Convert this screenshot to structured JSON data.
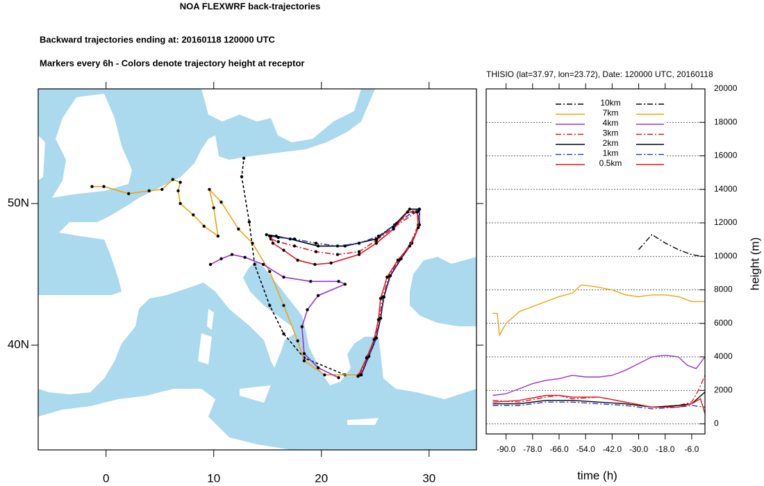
{
  "header": {
    "title": "NOA FLEXWRF back-trajectories",
    "subtitle": "Backward trajectories ending at: 20160118  120000 UTC",
    "note": "Markers every 6h - Colors denote trajectory height at receptor"
  },
  "chart_data": [
    {
      "type": "map",
      "xlim": [
        -6.3,
        34.4
      ],
      "ylim": [
        32.6,
        58.1
      ],
      "xticks": [
        0,
        10,
        20,
        30
      ],
      "yticks": [
        {
          "value": 40,
          "label": "40N"
        },
        {
          "value": 50,
          "label": "50N"
        }
      ],
      "markers": true,
      "series": [
        {
          "color": "#000000",
          "dash": "4,3",
          "x": [
            22.2,
            18.4,
            16.5,
            15.2,
            13.8,
            13.3,
            12.6,
            12.8
          ],
          "values": [
            37.9,
            39.1,
            40.8,
            42.8,
            45.7,
            48.7,
            51.9,
            53.2
          ]
        },
        {
          "color": "#f0a30a",
          "dash": "",
          "x": [
            23.5,
            20.3,
            18.4,
            17.8,
            16.5,
            15.2,
            13.6,
            12.3,
            10.7,
            9.6,
            10.0,
            10.4,
            9.1,
            8.1,
            6.9,
            6.7,
            6.9,
            6.2,
            5.2,
            4.0,
            2.1,
            -0.2,
            -1.3
          ],
          "values": [
            37.9,
            37.9,
            38.9,
            40.3,
            42.8,
            45.2,
            47.2,
            48.2,
            50.1,
            51.0,
            49.7,
            47.7,
            48.4,
            49.2,
            50.0,
            50.9,
            51.5,
            51.7,
            51.0,
            50.9,
            50.7,
            51.2,
            51.2
          ]
        },
        {
          "color": "#9933cc",
          "dash": "",
          "x": [
            21.6,
            19.7,
            18.4,
            18.2,
            18.7,
            19.7,
            22.2,
            21.6,
            19.0,
            16.5,
            14.6,
            12.9,
            11.7,
            10.7,
            9.7
          ],
          "values": [
            37.7,
            38.4,
            39.4,
            41.3,
            42.5,
            43.5,
            44.3,
            44.5,
            44.5,
            44.8,
            45.7,
            46.2,
            46.4,
            46.1,
            45.7
          ]
        },
        {
          "color": "#e8141e",
          "dash": "8,3,2,3",
          "x": [
            23.6,
            24.3,
            25.0,
            25.4,
            25.7,
            26.3,
            27.3,
            28.3,
            29.0,
            29.0,
            26.7,
            25.1,
            23.5,
            21.5,
            19.5,
            17.5,
            16.0,
            15.3
          ],
          "values": [
            37.9,
            39.2,
            40.5,
            41.9,
            43.4,
            44.9,
            46.1,
            47.2,
            48.5,
            49.5,
            48.3,
            47.4,
            46.6,
            46.4,
            46.6,
            47.0,
            47.3,
            47.5
          ]
        },
        {
          "color": "#000000",
          "dash": "",
          "x": [
            23.7,
            24.4,
            25.1,
            25.5,
            25.8,
            26.4,
            27.4,
            28.4,
            29.1,
            29.1,
            28.2,
            26.8,
            25.1,
            22.2,
            19.7,
            17.1,
            15.8,
            14.9
          ],
          "values": [
            37.9,
            39.2,
            40.5,
            41.9,
            43.4,
            44.9,
            46.1,
            47.2,
            48.5,
            49.6,
            49.6,
            48.5,
            47.5,
            47.0,
            47.0,
            47.5,
            47.7,
            47.8
          ]
        },
        {
          "color": "#1f3fd6",
          "dash": "8,3,2,3",
          "x": [
            23.7,
            24.4,
            25.1,
            25.5,
            25.8,
            26.4,
            27.4,
            28.4,
            29.1,
            29.1,
            28.5,
            27.0,
            25.3,
            23.5,
            21.5,
            19.5,
            17.5,
            16.0,
            15.2
          ],
          "values": [
            37.9,
            39.2,
            40.5,
            41.9,
            43.4,
            44.9,
            46.1,
            47.2,
            48.5,
            49.6,
            49.4,
            48.6,
            47.7,
            47.2,
            47.0,
            47.2,
            47.5,
            47.6,
            47.7
          ]
        },
        {
          "color": "#e8141e",
          "dash": "",
          "x": [
            23.4,
            24.2,
            24.9,
            25.3,
            25.5,
            26.1,
            27.1,
            28.2,
            29.0,
            28.9,
            28.0,
            26.7,
            25.1,
            23.5,
            20.9,
            19.4,
            17.8,
            16.5,
            15.5,
            15.3
          ],
          "values": [
            37.8,
            39.1,
            40.4,
            41.8,
            43.3,
            44.8,
            46.0,
            47.0,
            48.3,
            49.4,
            49.4,
            48.2,
            47.2,
            46.4,
            45.8,
            45.7,
            46.0,
            46.7,
            47.2,
            47.7
          ]
        }
      ]
    },
    {
      "type": "line",
      "title": "THISIO (lat=37.97,  lon=23.72), Date: 120000 UTC, 20160118",
      "xlabel": "time (h)",
      "ylabel": "height (m)",
      "xlim": [
        -99,
        0
      ],
      "ylim": [
        -600,
        20000
      ],
      "xticks": [
        {
          "value": -90,
          "label": "-90.0"
        },
        {
          "value": -78,
          "label": "-78.0"
        },
        {
          "value": -66,
          "label": "-66.0"
        },
        {
          "value": -54,
          "label": "-54.0"
        },
        {
          "value": -42,
          "label": "-42.0"
        },
        {
          "value": -30,
          "label": "-30.0"
        },
        {
          "value": -18,
          "label": "-18.0"
        },
        {
          "value": -6,
          "label": "-6.0"
        }
      ],
      "yticks": [
        0,
        2000,
        4000,
        6000,
        8000,
        10000,
        12000,
        14000,
        16000,
        18000,
        20000
      ],
      "grid": true,
      "legend": "top",
      "series": [
        {
          "name": "10km",
          "color": "#000000",
          "dash": "8,3,2,3",
          "x": [
            -30,
            -24,
            -18,
            -12,
            -6,
            -1
          ],
          "values": [
            10400,
            11300,
            10800,
            10400,
            10100,
            10000
          ]
        },
        {
          "name": "7km",
          "color": "#f0a30a",
          "dash": "",
          "x": [
            -96,
            -94,
            -93,
            -90,
            -84,
            -78,
            -72,
            -66,
            -60,
            -56,
            -50,
            -42,
            -36,
            -30,
            -24,
            -18,
            -12,
            -6,
            0
          ],
          "values": [
            6600,
            6600,
            5300,
            6000,
            6700,
            7000,
            7300,
            7600,
            7800,
            8300,
            8200,
            8000,
            7700,
            7600,
            7700,
            7700,
            7600,
            7300,
            7300
          ]
        },
        {
          "name": "4km",
          "color": "#9933cc",
          "dash": "",
          "x": [
            -96,
            -90,
            -84,
            -78,
            -72,
            -66,
            -60,
            -54,
            -48,
            -42,
            -36,
            -30,
            -24,
            -18,
            -12,
            -8,
            -4,
            0
          ],
          "values": [
            1700,
            1800,
            2100,
            2400,
            2600,
            2700,
            2900,
            2800,
            2800,
            2900,
            3200,
            3600,
            4000,
            4100,
            4000,
            3500,
            3300,
            4000
          ]
        },
        {
          "name": "3km",
          "color": "#e8141e",
          "dash": "8,3,2,3",
          "x": [
            -96,
            -84,
            -72,
            -66,
            -60,
            -48,
            -36,
            -24,
            -18,
            -12,
            -6,
            -3,
            0
          ],
          "values": [
            1400,
            1300,
            1600,
            1700,
            1500,
            1600,
            1300,
            1000,
            1000,
            1100,
            1300,
            2000,
            2900
          ]
        },
        {
          "name": "2km",
          "color": "#000000",
          "dash": "",
          "x": [
            -96,
            -84,
            -72,
            -60,
            -48,
            -36,
            -24,
            -12,
            -6,
            0
          ],
          "values": [
            1200,
            1200,
            1400,
            1400,
            1300,
            1200,
            1000,
            1100,
            1200,
            1900
          ]
        },
        {
          "name": "1km",
          "color": "#1f3fd6",
          "dash": "8,3,2,3",
          "x": [
            -96,
            -84,
            -72,
            -60,
            -48,
            -36,
            -24,
            -12,
            -6,
            0
          ],
          "values": [
            1100,
            1100,
            1300,
            1300,
            1200,
            1100,
            900,
            1000,
            1100,
            1000
          ]
        },
        {
          "name": "0.5km",
          "color": "#e8141e",
          "dash": "",
          "x": [
            -96,
            -84,
            -72,
            -66,
            -60,
            -48,
            -36,
            -24,
            -12,
            -6,
            -2,
            0
          ],
          "values": [
            1300,
            1400,
            1700,
            1700,
            1600,
            1600,
            1300,
            1000,
            1000,
            1200,
            1500,
            600
          ]
        }
      ]
    }
  ]
}
